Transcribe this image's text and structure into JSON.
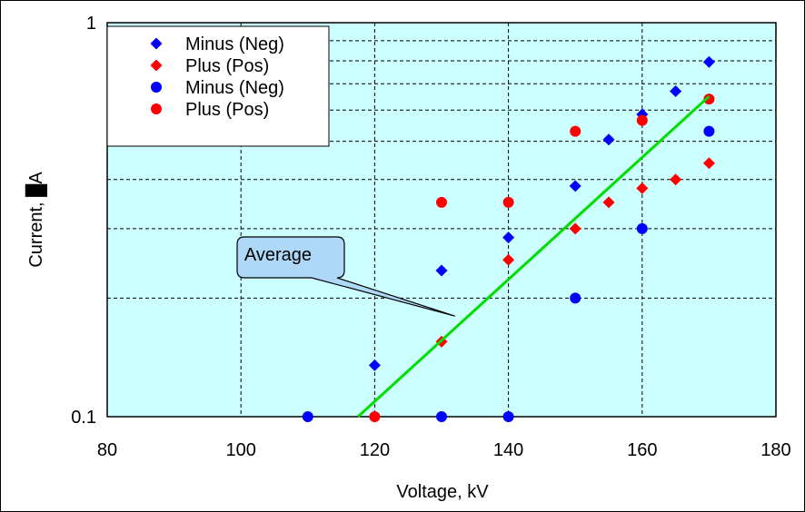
{
  "chart_data": {
    "type": "scatter",
    "title": "",
    "xlabel": "Voltage, kV",
    "ylabel": "Current, █A",
    "xlim": [
      80,
      180
    ],
    "ylim": [
      0.1,
      1
    ],
    "y_scale": "log",
    "x_ticks": [
      "80",
      "100",
      "120",
      "140",
      "160",
      "180"
    ],
    "y_ticks": [
      "0.1",
      "1"
    ],
    "grid": true,
    "plot_background": "#ccffff",
    "legend_position": "top-left",
    "series": [
      {
        "name": "Minus (Neg)",
        "marker": "diamond",
        "color": "#0000ff",
        "points": [
          [
            120,
            0.135
          ],
          [
            130,
            0.235
          ],
          [
            140,
            0.285
          ],
          [
            150,
            0.385
          ],
          [
            155,
            0.505
          ],
          [
            160,
            0.585
          ],
          [
            165,
            0.67
          ],
          [
            170,
            0.795
          ]
        ]
      },
      {
        "name": "Plus (Pos)",
        "marker": "diamond",
        "color": "#ff0000",
        "points": [
          [
            120,
            0.1
          ],
          [
            130,
            0.155
          ],
          [
            140,
            0.25
          ],
          [
            150,
            0.3
          ],
          [
            155,
            0.35
          ],
          [
            160,
            0.38
          ],
          [
            165,
            0.4
          ],
          [
            170,
            0.44
          ]
        ]
      },
      {
        "name": "Minus (Neg)",
        "marker": "circle",
        "color": "#0000ff",
        "points": [
          [
            110,
            0.1
          ],
          [
            130,
            0.1
          ],
          [
            140,
            0.1
          ],
          [
            150,
            0.2
          ],
          [
            160,
            0.3
          ],
          [
            170,
            0.53
          ]
        ]
      },
      {
        "name": "Plus (Pos)",
        "marker": "circle",
        "color": "#ff0000",
        "points": [
          [
            120,
            0.1
          ],
          [
            130,
            0.35
          ],
          [
            140,
            0.35
          ],
          [
            150,
            0.53
          ],
          [
            160,
            0.565
          ],
          [
            170,
            0.64
          ]
        ]
      },
      {
        "name": "Average",
        "type": "line",
        "color": "#00dd00",
        "points": [
          [
            117.5,
            0.1
          ],
          [
            170,
            0.65
          ]
        ]
      }
    ],
    "annotations": [
      {
        "text": "Average",
        "target": [
          132,
          0.18
        ]
      }
    ]
  }
}
